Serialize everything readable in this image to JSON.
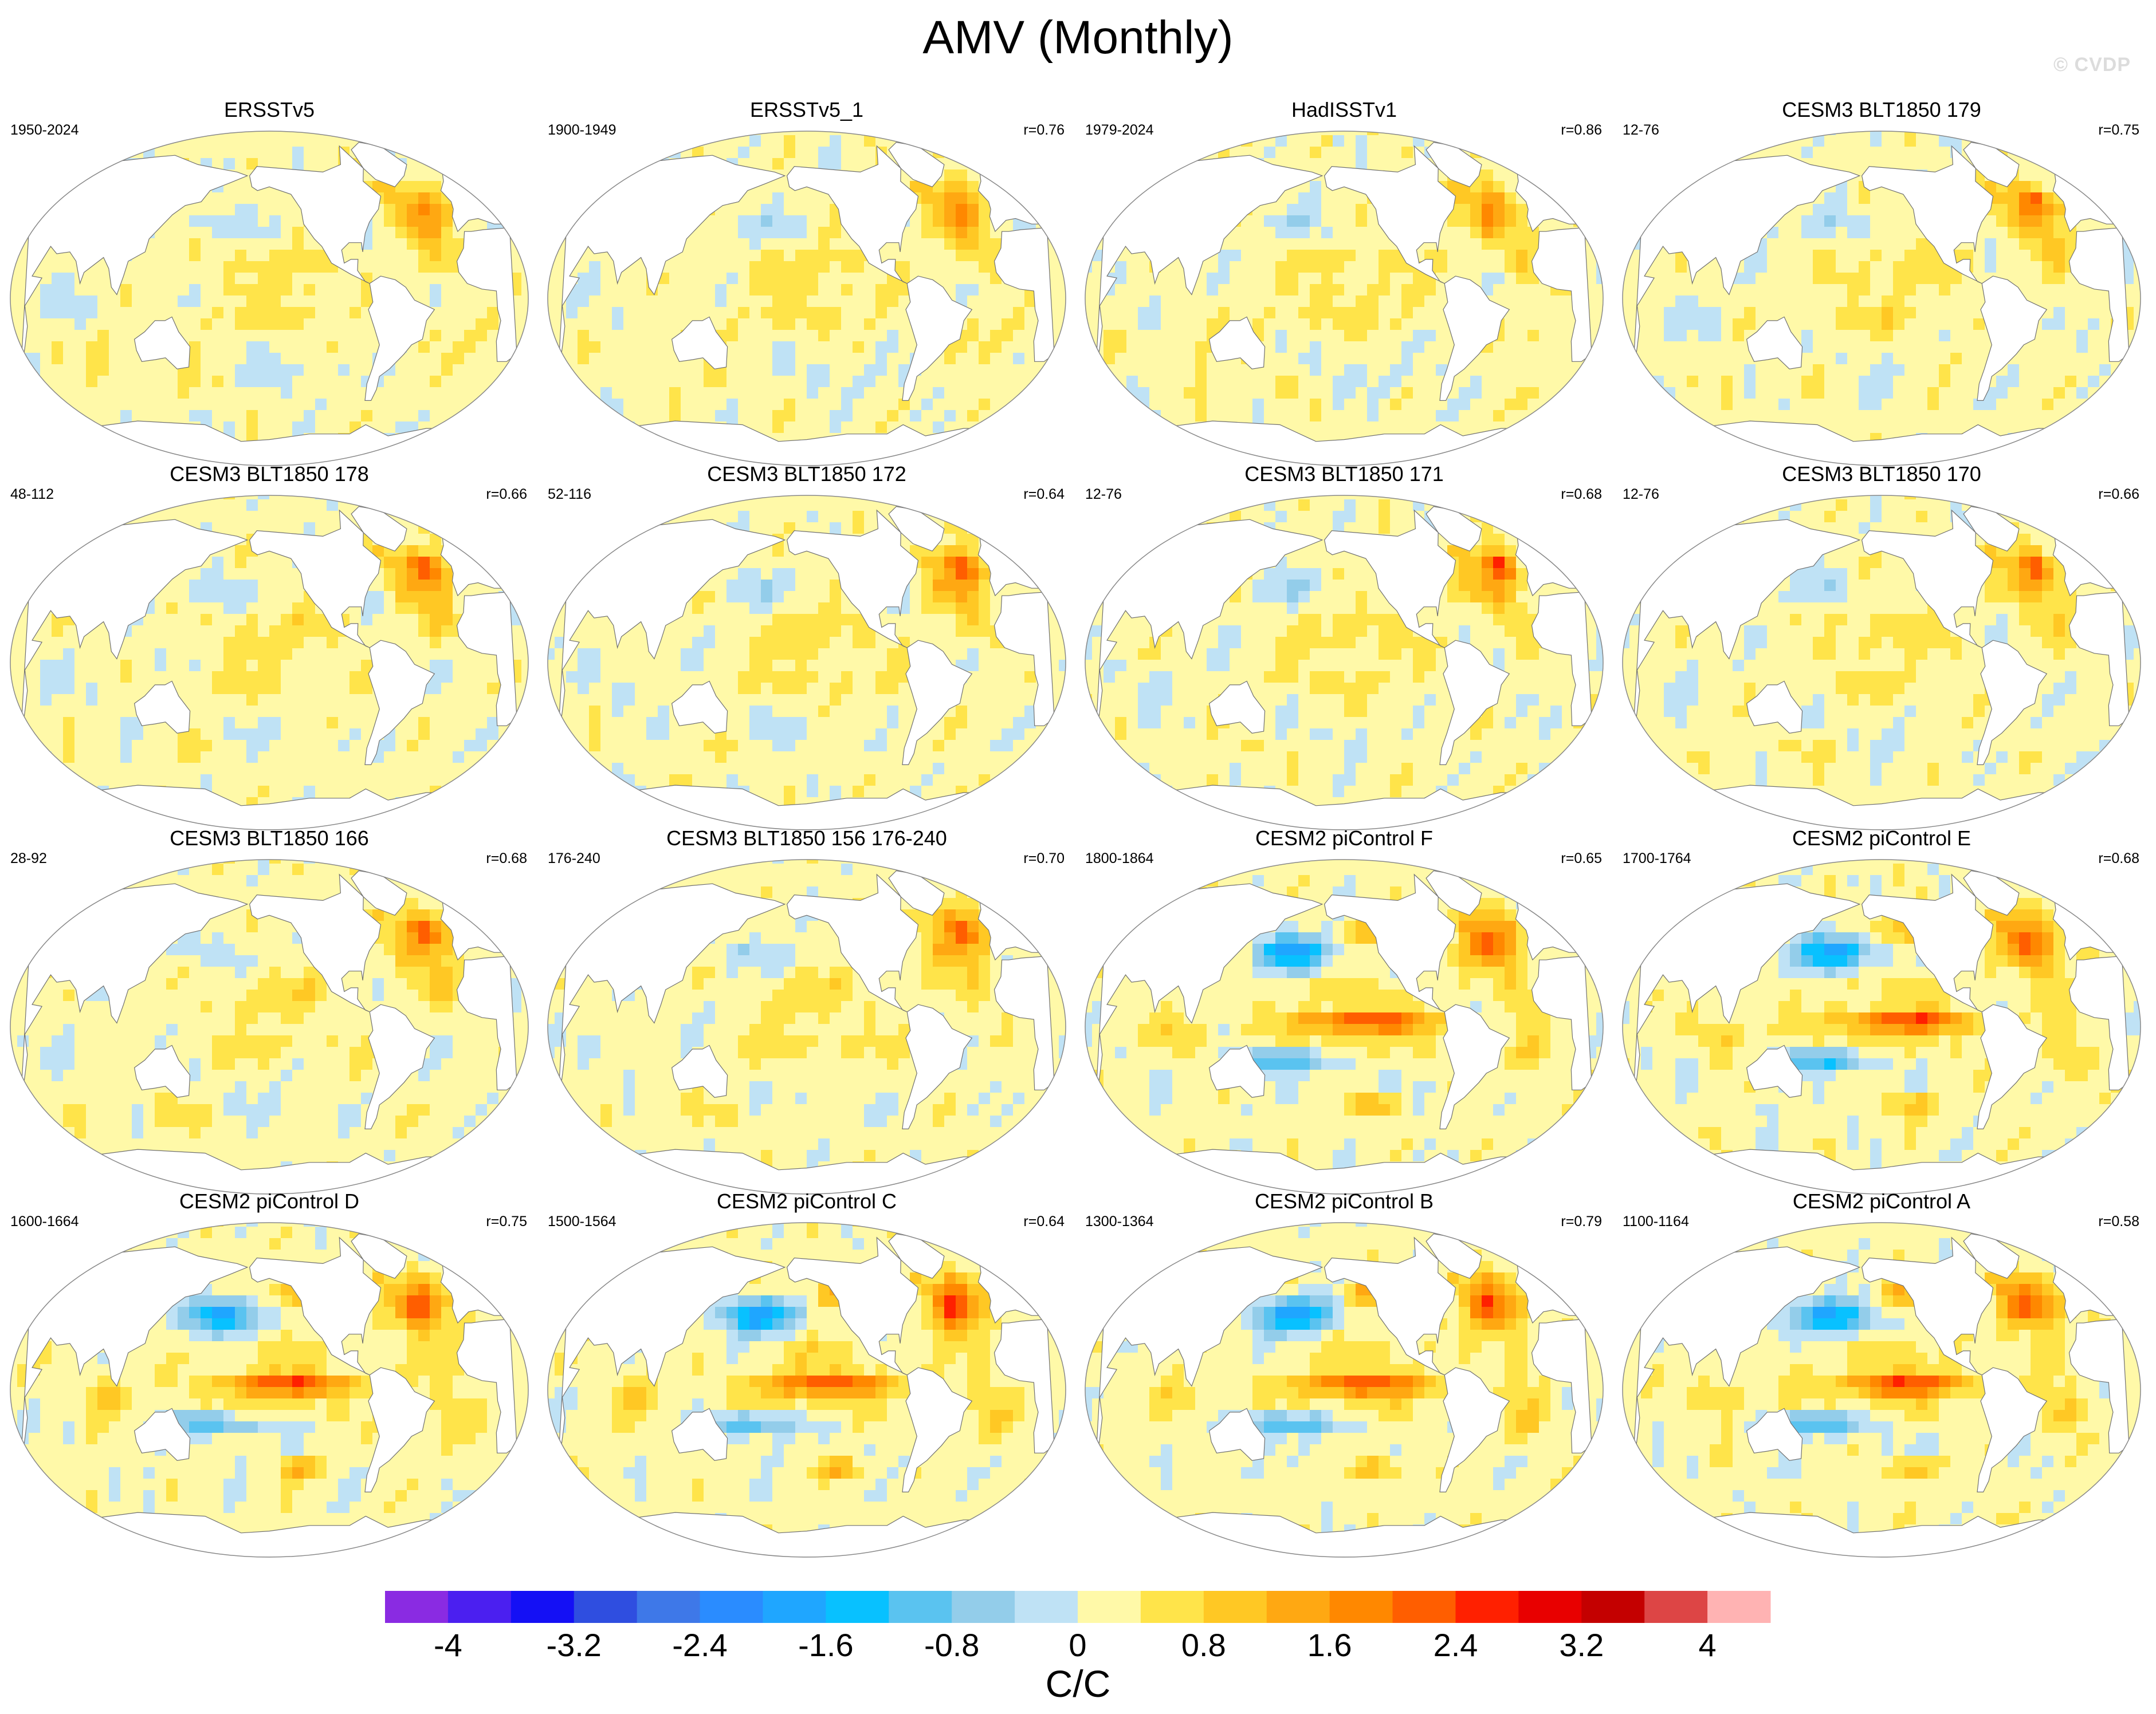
{
  "figure": {
    "title": "AMV (Monthly)",
    "watermark": "© CVDP"
  },
  "chart_data": {
    "type": "heatmap",
    "projection": "robinson-like global map",
    "panels": [
      {
        "title": "ERSSTv5",
        "period": "1950-2024",
        "r": "",
        "style": "obs"
      },
      {
        "title": "ERSSTv5_1",
        "period": "1900-1949",
        "r": "r=0.76",
        "style": "obs"
      },
      {
        "title": "HadISSTv1",
        "period": "1979-2024",
        "r": "r=0.86",
        "style": "obs"
      },
      {
        "title": "CESM3 BLT1850 179",
        "period": "12-76",
        "r": "r=0.75",
        "style": "weak"
      },
      {
        "title": "CESM3 BLT1850 178",
        "period": "48-112",
        "r": "r=0.66",
        "style": "weak"
      },
      {
        "title": "CESM3 BLT1850 172",
        "period": "52-116",
        "r": "r=0.64",
        "style": "weak"
      },
      {
        "title": "CESM3 BLT1850 171",
        "period": "12-76",
        "r": "r=0.68",
        "style": "weak"
      },
      {
        "title": "CESM3 BLT1850 170",
        "period": "12-76",
        "r": "r=0.66",
        "style": "weak"
      },
      {
        "title": "CESM3 BLT1850 166",
        "period": "28-92",
        "r": "r=0.68",
        "style": "weak"
      },
      {
        "title": "CESM3 BLT1850 156 176-240",
        "period": "176-240",
        "r": "r=0.70",
        "style": "weak"
      },
      {
        "title": "CESM2 piControl F",
        "period": "1800-1864",
        "r": "r=0.65",
        "style": "strong"
      },
      {
        "title": "CESM2 piControl E",
        "period": "1700-1764",
        "r": "r=0.68",
        "style": "strong"
      },
      {
        "title": "CESM2 piControl D",
        "period": "1600-1664",
        "r": "r=0.75",
        "style": "strong"
      },
      {
        "title": "CESM2 piControl C",
        "period": "1500-1564",
        "r": "r=0.64",
        "style": "strong"
      },
      {
        "title": "CESM2 piControl B",
        "period": "1300-1364",
        "r": "r=0.79",
        "style": "strong"
      },
      {
        "title": "CESM2 piControl A",
        "period": "1100-1164",
        "r": "r=0.58",
        "style": "strong"
      }
    ],
    "colorbar": {
      "units": "C/C",
      "range": [
        -4.4,
        4.4
      ],
      "colors": [
        "#8a2be2",
        "#4b1ff0",
        "#1410f5",
        "#2f4ee0",
        "#3e78e8",
        "#2a8cff",
        "#1fa6ff",
        "#08c1ff",
        "#5ac3f0",
        "#93cdea",
        "#bfe2f5",
        "#fff9a8",
        "#ffe44a",
        "#ffc824",
        "#ffa812",
        "#ff8800",
        "#ff5e00",
        "#ff2000",
        "#e80000",
        "#c40000",
        "#dd4545",
        "#ffb3b3"
      ],
      "tick_labels": [
        "-4",
        "-3.2",
        "-2.4",
        "-1.6",
        "-0.8",
        "0",
        "0.8",
        "1.6",
        "2.4",
        "3.2",
        "4"
      ]
    }
  }
}
